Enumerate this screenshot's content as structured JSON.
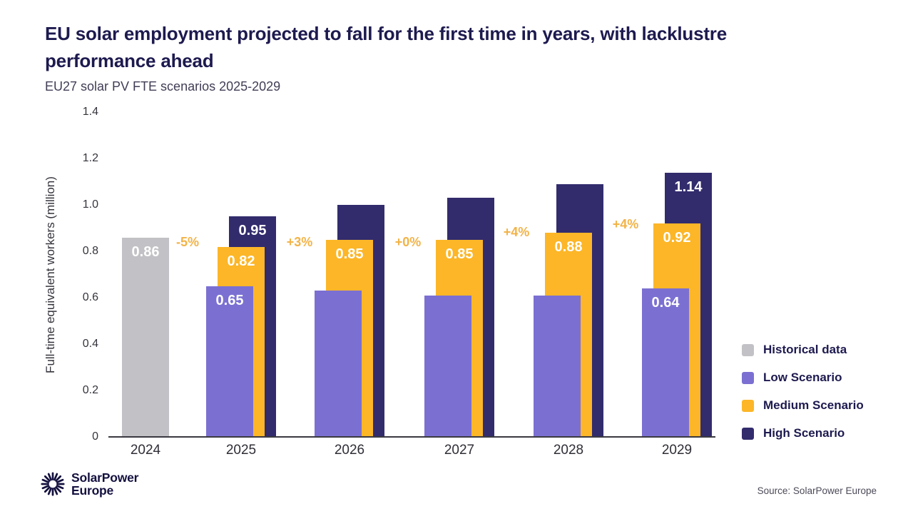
{
  "header": {
    "title_line1": "EU solar employment projected to fall for the first time in years, with lacklustre",
    "title_line2": "performance ahead",
    "subtitle": "EU27 solar PV FTE scenarios 2025-2029"
  },
  "colors": {
    "historical": "#c2c1c5",
    "low": "#7b70d2",
    "medium": "#fcb627",
    "high": "#322c6d",
    "pct_label": "#f2b348",
    "title": "#1d1a4f"
  },
  "chart_data": {
    "type": "bar",
    "title": "EU27 solar PV FTE scenarios 2025-2029",
    "ylabel": "Full-time equivalent workers (million)",
    "ylim": [
      0,
      1.4
    ],
    "ytick_values": [
      1.4,
      1.2,
      1.0,
      0.8,
      0.6,
      0.4,
      0.2,
      0
    ],
    "ytick_labels": [
      "1.4",
      "1.2",
      "1.0",
      "0.8",
      "0.6",
      "0.4",
      "0.2",
      "0"
    ],
    "categories": [
      "2024",
      "2025",
      "2026",
      "2027",
      "2028",
      "2029"
    ],
    "grid": "off",
    "legend_position": "right",
    "historical": {
      "category": "2024",
      "value": 0.86,
      "label": "0.86",
      "series_name": "Historical data"
    },
    "scenario_categories": [
      "2025",
      "2026",
      "2027",
      "2028",
      "2029"
    ],
    "series": [
      {
        "name": "Low Scenario",
        "color_key": "low",
        "values": [
          0.65,
          0.63,
          0.61,
          0.61,
          0.64
        ],
        "labels": [
          "0.65",
          null,
          null,
          null,
          "0.64"
        ]
      },
      {
        "name": "Medium Scenario",
        "color_key": "medium",
        "values": [
          0.82,
          0.85,
          0.85,
          0.88,
          0.92
        ],
        "labels": [
          "0.82",
          "0.85",
          "0.85",
          "0.88",
          "0.92"
        ]
      },
      {
        "name": "High Scenario",
        "color_key": "high",
        "values": [
          0.95,
          1.0,
          1.03,
          1.09,
          1.14
        ],
        "labels": [
          "0.95",
          null,
          null,
          null,
          "1.14"
        ]
      }
    ],
    "pct_changes": [
      "-5%",
      "+3%",
      "+0%",
      "+4%",
      "+4%"
    ],
    "legend": [
      {
        "label": "Historical data",
        "color_key": "historical"
      },
      {
        "label": "Low Scenario",
        "color_key": "low"
      },
      {
        "label": "Medium Scenario",
        "color_key": "medium"
      },
      {
        "label": "High Scenario",
        "color_key": "high"
      }
    ]
  },
  "footer": {
    "logo_line1": "SolarPower",
    "logo_line2": "Europe",
    "source": "Source: SolarPower Europe"
  }
}
